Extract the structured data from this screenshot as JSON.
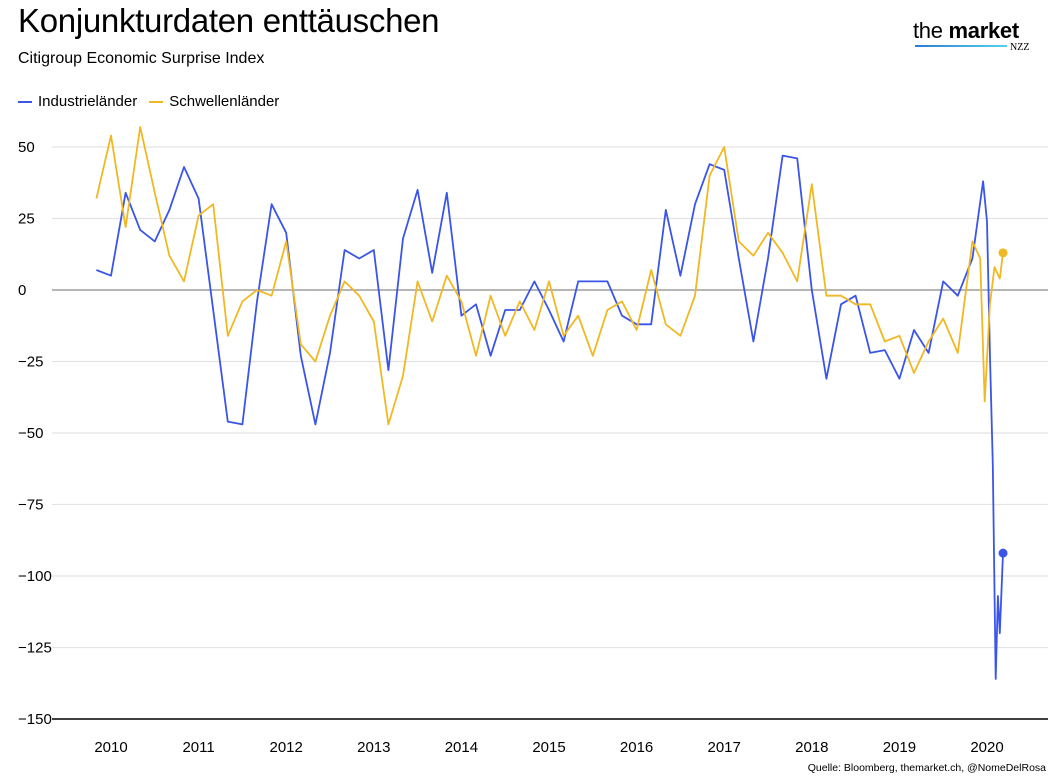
{
  "header": {
    "title": "Konjunkturdaten enttäuschen",
    "subtitle": "Citigroup Economic Surprise Index",
    "logo_text": "the market",
    "logo_sub": "NZZ"
  },
  "footer": {
    "source": "Quelle: Bloomberg,  themarket.ch, @NomeDelRosa"
  },
  "chart_data": {
    "type": "line",
    "title": "Konjunkturdaten enttäuschen",
    "subtitle": "Citigroup Economic Surprise Index",
    "xlabel": "",
    "ylabel": "",
    "ylim": [
      -150,
      60
    ],
    "yticks": [
      50,
      25,
      0,
      -25,
      -50,
      -75,
      -100,
      -125,
      -150
    ],
    "ytick_labels": [
      "50",
      "25",
      "0",
      "−25",
      "−50",
      "−75",
      "−100",
      "−125",
      "−150"
    ],
    "xticks": [
      "2010",
      "2011",
      "2012",
      "2013",
      "2014",
      "2015",
      "2016",
      "2017",
      "2018",
      "2019",
      "2020"
    ],
    "grid": "horizontal",
    "legend_position": "top-left",
    "series": [
      {
        "name": "Industrieländer",
        "color": "#3a55e8",
        "end_marker": true,
        "points": [
          [
            "2009-11-01",
            7
          ],
          [
            "2010-01-01",
            5
          ],
          [
            "2010-03-01",
            34
          ],
          [
            "2010-05-01",
            21
          ],
          [
            "2010-07-01",
            17
          ],
          [
            "2010-09-01",
            28
          ],
          [
            "2010-11-01",
            43
          ],
          [
            "2011-01-01",
            32
          ],
          [
            "2011-03-01",
            -7
          ],
          [
            "2011-05-01",
            -46
          ],
          [
            "2011-07-01",
            -47
          ],
          [
            "2011-09-01",
            -4
          ],
          [
            "2011-11-01",
            30
          ],
          [
            "2012-01-01",
            20
          ],
          [
            "2012-03-01",
            -23
          ],
          [
            "2012-05-01",
            -47
          ],
          [
            "2012-07-01",
            -22
          ],
          [
            "2012-09-01",
            14
          ],
          [
            "2012-11-01",
            11
          ],
          [
            "2013-01-01",
            14
          ],
          [
            "2013-03-01",
            -28
          ],
          [
            "2013-05-01",
            18
          ],
          [
            "2013-07-01",
            35
          ],
          [
            "2013-09-01",
            6
          ],
          [
            "2013-11-01",
            34
          ],
          [
            "2014-01-01",
            -9
          ],
          [
            "2014-03-01",
            -5
          ],
          [
            "2014-05-01",
            -23
          ],
          [
            "2014-07-01",
            -7
          ],
          [
            "2014-09-01",
            -7
          ],
          [
            "2014-11-01",
            3
          ],
          [
            "2015-01-01",
            -7
          ],
          [
            "2015-03-01",
            -18
          ],
          [
            "2015-05-01",
            3
          ],
          [
            "2015-07-01",
            3
          ],
          [
            "2015-09-01",
            3
          ],
          [
            "2015-11-01",
            -9
          ],
          [
            "2016-01-01",
            -12
          ],
          [
            "2016-03-01",
            -12
          ],
          [
            "2016-05-01",
            28
          ],
          [
            "2016-07-01",
            5
          ],
          [
            "2016-09-01",
            30
          ],
          [
            "2016-11-01",
            44
          ],
          [
            "2017-01-01",
            42
          ],
          [
            "2017-03-01",
            11
          ],
          [
            "2017-05-01",
            -18
          ],
          [
            "2017-07-01",
            11
          ],
          [
            "2017-09-01",
            47
          ],
          [
            "2017-11-01",
            46
          ],
          [
            "2018-01-01",
            0
          ],
          [
            "2018-03-01",
            -31
          ],
          [
            "2018-05-01",
            -5
          ],
          [
            "2018-07-01",
            -2
          ],
          [
            "2018-09-01",
            -22
          ],
          [
            "2018-11-01",
            -21
          ],
          [
            "2019-01-01",
            -31
          ],
          [
            "2019-03-01",
            -14
          ],
          [
            "2019-05-01",
            -22
          ],
          [
            "2019-07-01",
            3
          ],
          [
            "2019-09-01",
            -2
          ],
          [
            "2019-11-01",
            11
          ],
          [
            "2019-12-15",
            38
          ],
          [
            "2020-01-01",
            24
          ],
          [
            "2020-01-13",
            -22
          ],
          [
            "2020-01-25",
            -61
          ],
          [
            "2020-02-07",
            -136
          ],
          [
            "2020-02-16",
            -107
          ],
          [
            "2020-02-24",
            -120
          ],
          [
            "2020-03-07",
            -92
          ]
        ]
      },
      {
        "name": "Schwellenländer",
        "color": "#f0b824",
        "end_marker": true,
        "points": [
          [
            "2009-11-01",
            32
          ],
          [
            "2010-01-01",
            54
          ],
          [
            "2010-03-01",
            22
          ],
          [
            "2010-05-01",
            57
          ],
          [
            "2010-07-01",
            34
          ],
          [
            "2010-09-01",
            12
          ],
          [
            "2010-11-01",
            3
          ],
          [
            "2011-01-01",
            26
          ],
          [
            "2011-03-01",
            30
          ],
          [
            "2011-05-01",
            -16
          ],
          [
            "2011-07-01",
            -4
          ],
          [
            "2011-09-01",
            0
          ],
          [
            "2011-11-01",
            -2
          ],
          [
            "2012-01-01",
            17
          ],
          [
            "2012-03-01",
            -19
          ],
          [
            "2012-05-01",
            -25
          ],
          [
            "2012-07-01",
            -9
          ],
          [
            "2012-09-01",
            3
          ],
          [
            "2012-11-01",
            -2
          ],
          [
            "2013-01-01",
            -11
          ],
          [
            "2013-03-01",
            -47
          ],
          [
            "2013-05-01",
            -30
          ],
          [
            "2013-07-01",
            3
          ],
          [
            "2013-09-01",
            -11
          ],
          [
            "2013-11-01",
            5
          ],
          [
            "2014-01-01",
            -4
          ],
          [
            "2014-03-01",
            -23
          ],
          [
            "2014-05-01",
            -2
          ],
          [
            "2014-07-01",
            -16
          ],
          [
            "2014-09-01",
            -4
          ],
          [
            "2014-11-01",
            -14
          ],
          [
            "2015-01-01",
            3
          ],
          [
            "2015-03-01",
            -16
          ],
          [
            "2015-05-01",
            -9
          ],
          [
            "2015-07-01",
            -23
          ],
          [
            "2015-09-01",
            -7
          ],
          [
            "2015-11-01",
            -4
          ],
          [
            "2016-01-01",
            -14
          ],
          [
            "2016-03-01",
            7
          ],
          [
            "2016-05-01",
            -12
          ],
          [
            "2016-07-01",
            -16
          ],
          [
            "2016-09-01",
            -2
          ],
          [
            "2016-11-01",
            40
          ],
          [
            "2017-01-01",
            50
          ],
          [
            "2017-03-01",
            17
          ],
          [
            "2017-05-01",
            12
          ],
          [
            "2017-07-01",
            20
          ],
          [
            "2017-09-01",
            13
          ],
          [
            "2017-11-01",
            3
          ],
          [
            "2018-01-01",
            37
          ],
          [
            "2018-03-01",
            -2
          ],
          [
            "2018-05-01",
            -2
          ],
          [
            "2018-07-01",
            -5
          ],
          [
            "2018-09-01",
            -5
          ],
          [
            "2018-11-01",
            -18
          ],
          [
            "2019-01-01",
            -16
          ],
          [
            "2019-03-01",
            -29
          ],
          [
            "2019-05-01",
            -18
          ],
          [
            "2019-07-01",
            -10
          ],
          [
            "2019-09-01",
            -22
          ],
          [
            "2019-11-01",
            17
          ],
          [
            "2019-12-03",
            11
          ],
          [
            "2019-12-22",
            -39
          ],
          [
            "2020-01-13",
            -5
          ],
          [
            "2020-02-02",
            8
          ],
          [
            "2020-02-24",
            4
          ],
          [
            "2020-03-07",
            13
          ]
        ]
      }
    ]
  }
}
